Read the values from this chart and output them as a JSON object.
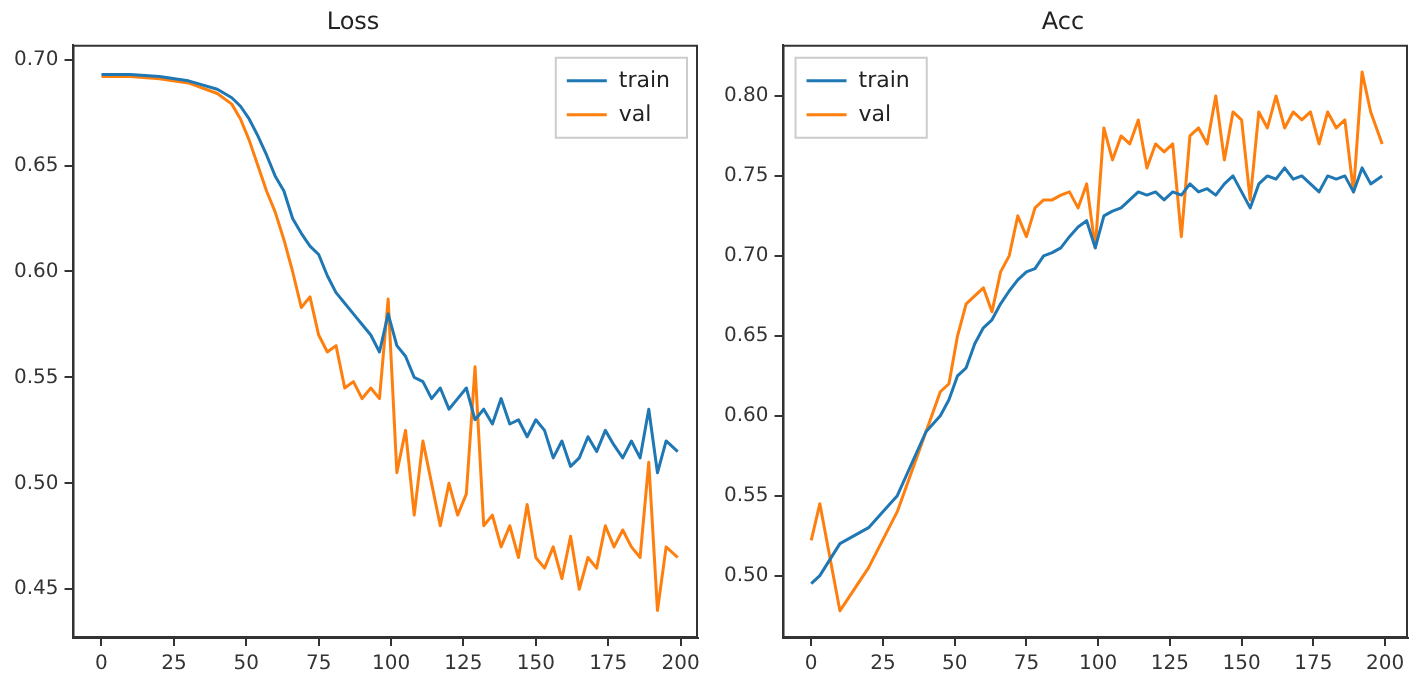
{
  "chart_data": [
    {
      "type": "line",
      "title": "Loss",
      "x": [
        0,
        3,
        10,
        20,
        30,
        40,
        45,
        48,
        51,
        54,
        57,
        60,
        63,
        66,
        69,
        72,
        75,
        78,
        81,
        84,
        87,
        90,
        93,
        96,
        99,
        102,
        105,
        108,
        111,
        114,
        117,
        120,
        123,
        126,
        129,
        132,
        135,
        138,
        141,
        144,
        147,
        150,
        153,
        156,
        159,
        162,
        165,
        168,
        171,
        174,
        177,
        180,
        183,
        186,
        189,
        192,
        195,
        199
      ],
      "series": [
        {
          "name": "train",
          "color": "#1f77b4",
          "values": [
            0.693,
            0.693,
            0.693,
            0.692,
            0.69,
            0.686,
            0.682,
            0.678,
            0.672,
            0.664,
            0.655,
            0.645,
            0.638,
            0.625,
            0.618,
            0.612,
            0.608,
            0.598,
            0.59,
            0.585,
            0.58,
            0.575,
            0.57,
            0.562,
            0.58,
            0.565,
            0.56,
            0.55,
            0.548,
            0.54,
            0.545,
            0.535,
            0.54,
            0.545,
            0.53,
            0.535,
            0.528,
            0.54,
            0.528,
            0.53,
            0.522,
            0.53,
            0.525,
            0.512,
            0.52,
            0.508,
            0.512,
            0.522,
            0.515,
            0.525,
            0.518,
            0.512,
            0.52,
            0.512,
            0.535,
            0.505,
            0.52,
            0.515
          ]
        },
        {
          "name": "val",
          "color": "#ff7f0e",
          "values": [
            0.692,
            0.692,
            0.692,
            0.691,
            0.689,
            0.684,
            0.679,
            0.672,
            0.662,
            0.65,
            0.638,
            0.628,
            0.615,
            0.6,
            0.583,
            0.588,
            0.57,
            0.562,
            0.565,
            0.545,
            0.548,
            0.54,
            0.545,
            0.54,
            0.587,
            0.505,
            0.525,
            0.485,
            0.52,
            0.5,
            0.48,
            0.5,
            0.485,
            0.495,
            0.555,
            0.48,
            0.485,
            0.47,
            0.48,
            0.465,
            0.49,
            0.465,
            0.46,
            0.47,
            0.455,
            0.475,
            0.45,
            0.465,
            0.46,
            0.48,
            0.47,
            0.478,
            0.47,
            0.465,
            0.51,
            0.44,
            0.47,
            0.465
          ]
        }
      ],
      "xlim": [
        -10,
        206
      ],
      "xticks": [
        0,
        25,
        50,
        75,
        100,
        125,
        150,
        175,
        200
      ],
      "ylim": [
        0.427,
        0.707
      ],
      "yticks": [
        {
          "value": 0.45,
          "label": "0.45"
        },
        {
          "value": 0.5,
          "label": "0.50"
        },
        {
          "value": 0.55,
          "label": "0.55"
        },
        {
          "value": 0.6,
          "label": "0.60"
        },
        {
          "value": 0.65,
          "label": "0.65"
        },
        {
          "value": 0.7,
          "label": "0.70"
        }
      ],
      "legend": "top right",
      "marker": "none",
      "line_style": "solid",
      "grid": false
    },
    {
      "type": "line",
      "title": "Acc",
      "x": [
        0,
        3,
        10,
        20,
        30,
        40,
        45,
        48,
        51,
        54,
        57,
        60,
        63,
        66,
        69,
        72,
        75,
        78,
        81,
        84,
        87,
        90,
        93,
        96,
        99,
        102,
        105,
        108,
        111,
        114,
        117,
        120,
        123,
        126,
        129,
        132,
        135,
        138,
        141,
        144,
        147,
        150,
        153,
        156,
        159,
        162,
        165,
        168,
        171,
        174,
        177,
        180,
        183,
        186,
        189,
        192,
        195,
        199
      ],
      "series": [
        {
          "name": "train",
          "color": "#1f77b4",
          "values": [
            0.495,
            0.5,
            0.52,
            0.53,
            0.55,
            0.59,
            0.6,
            0.61,
            0.625,
            0.63,
            0.645,
            0.655,
            0.66,
            0.67,
            0.678,
            0.685,
            0.69,
            0.692,
            0.7,
            0.702,
            0.705,
            0.712,
            0.718,
            0.722,
            0.705,
            0.725,
            0.728,
            0.73,
            0.735,
            0.74,
            0.738,
            0.74,
            0.735,
            0.74,
            0.738,
            0.745,
            0.74,
            0.742,
            0.738,
            0.745,
            0.75,
            0.74,
            0.73,
            0.745,
            0.75,
            0.748,
            0.755,
            0.748,
            0.75,
            0.745,
            0.74,
            0.75,
            0.748,
            0.75,
            0.74,
            0.755,
            0.745,
            0.75
          ]
        },
        {
          "name": "val",
          "color": "#ff7f0e",
          "values": [
            0.522,
            0.545,
            0.478,
            0.505,
            0.54,
            0.59,
            0.615,
            0.62,
            0.65,
            0.67,
            0.675,
            0.68,
            0.665,
            0.69,
            0.7,
            0.725,
            0.712,
            0.73,
            0.735,
            0.735,
            0.738,
            0.74,
            0.73,
            0.745,
            0.705,
            0.78,
            0.76,
            0.775,
            0.77,
            0.785,
            0.755,
            0.77,
            0.765,
            0.77,
            0.712,
            0.775,
            0.78,
            0.77,
            0.8,
            0.76,
            0.79,
            0.785,
            0.735,
            0.79,
            0.78,
            0.8,
            0.78,
            0.79,
            0.785,
            0.79,
            0.77,
            0.79,
            0.78,
            0.785,
            0.74,
            0.815,
            0.79,
            0.77
          ]
        }
      ],
      "xlim": [
        -10,
        208
      ],
      "xticks": [
        0,
        25,
        50,
        75,
        100,
        125,
        150,
        175,
        200
      ],
      "ylim": [
        0.461,
        0.832
      ],
      "yticks": [
        {
          "value": 0.5,
          "label": "0.50"
        },
        {
          "value": 0.55,
          "label": "0.55"
        },
        {
          "value": 0.6,
          "label": "0.60"
        },
        {
          "value": 0.65,
          "label": "0.65"
        },
        {
          "value": 0.7,
          "label": "0.70"
        },
        {
          "value": 0.75,
          "label": "0.75"
        },
        {
          "value": 0.8,
          "label": "0.80"
        }
      ],
      "legend": "top left",
      "marker": "none",
      "line_style": "solid",
      "grid": false
    }
  ]
}
